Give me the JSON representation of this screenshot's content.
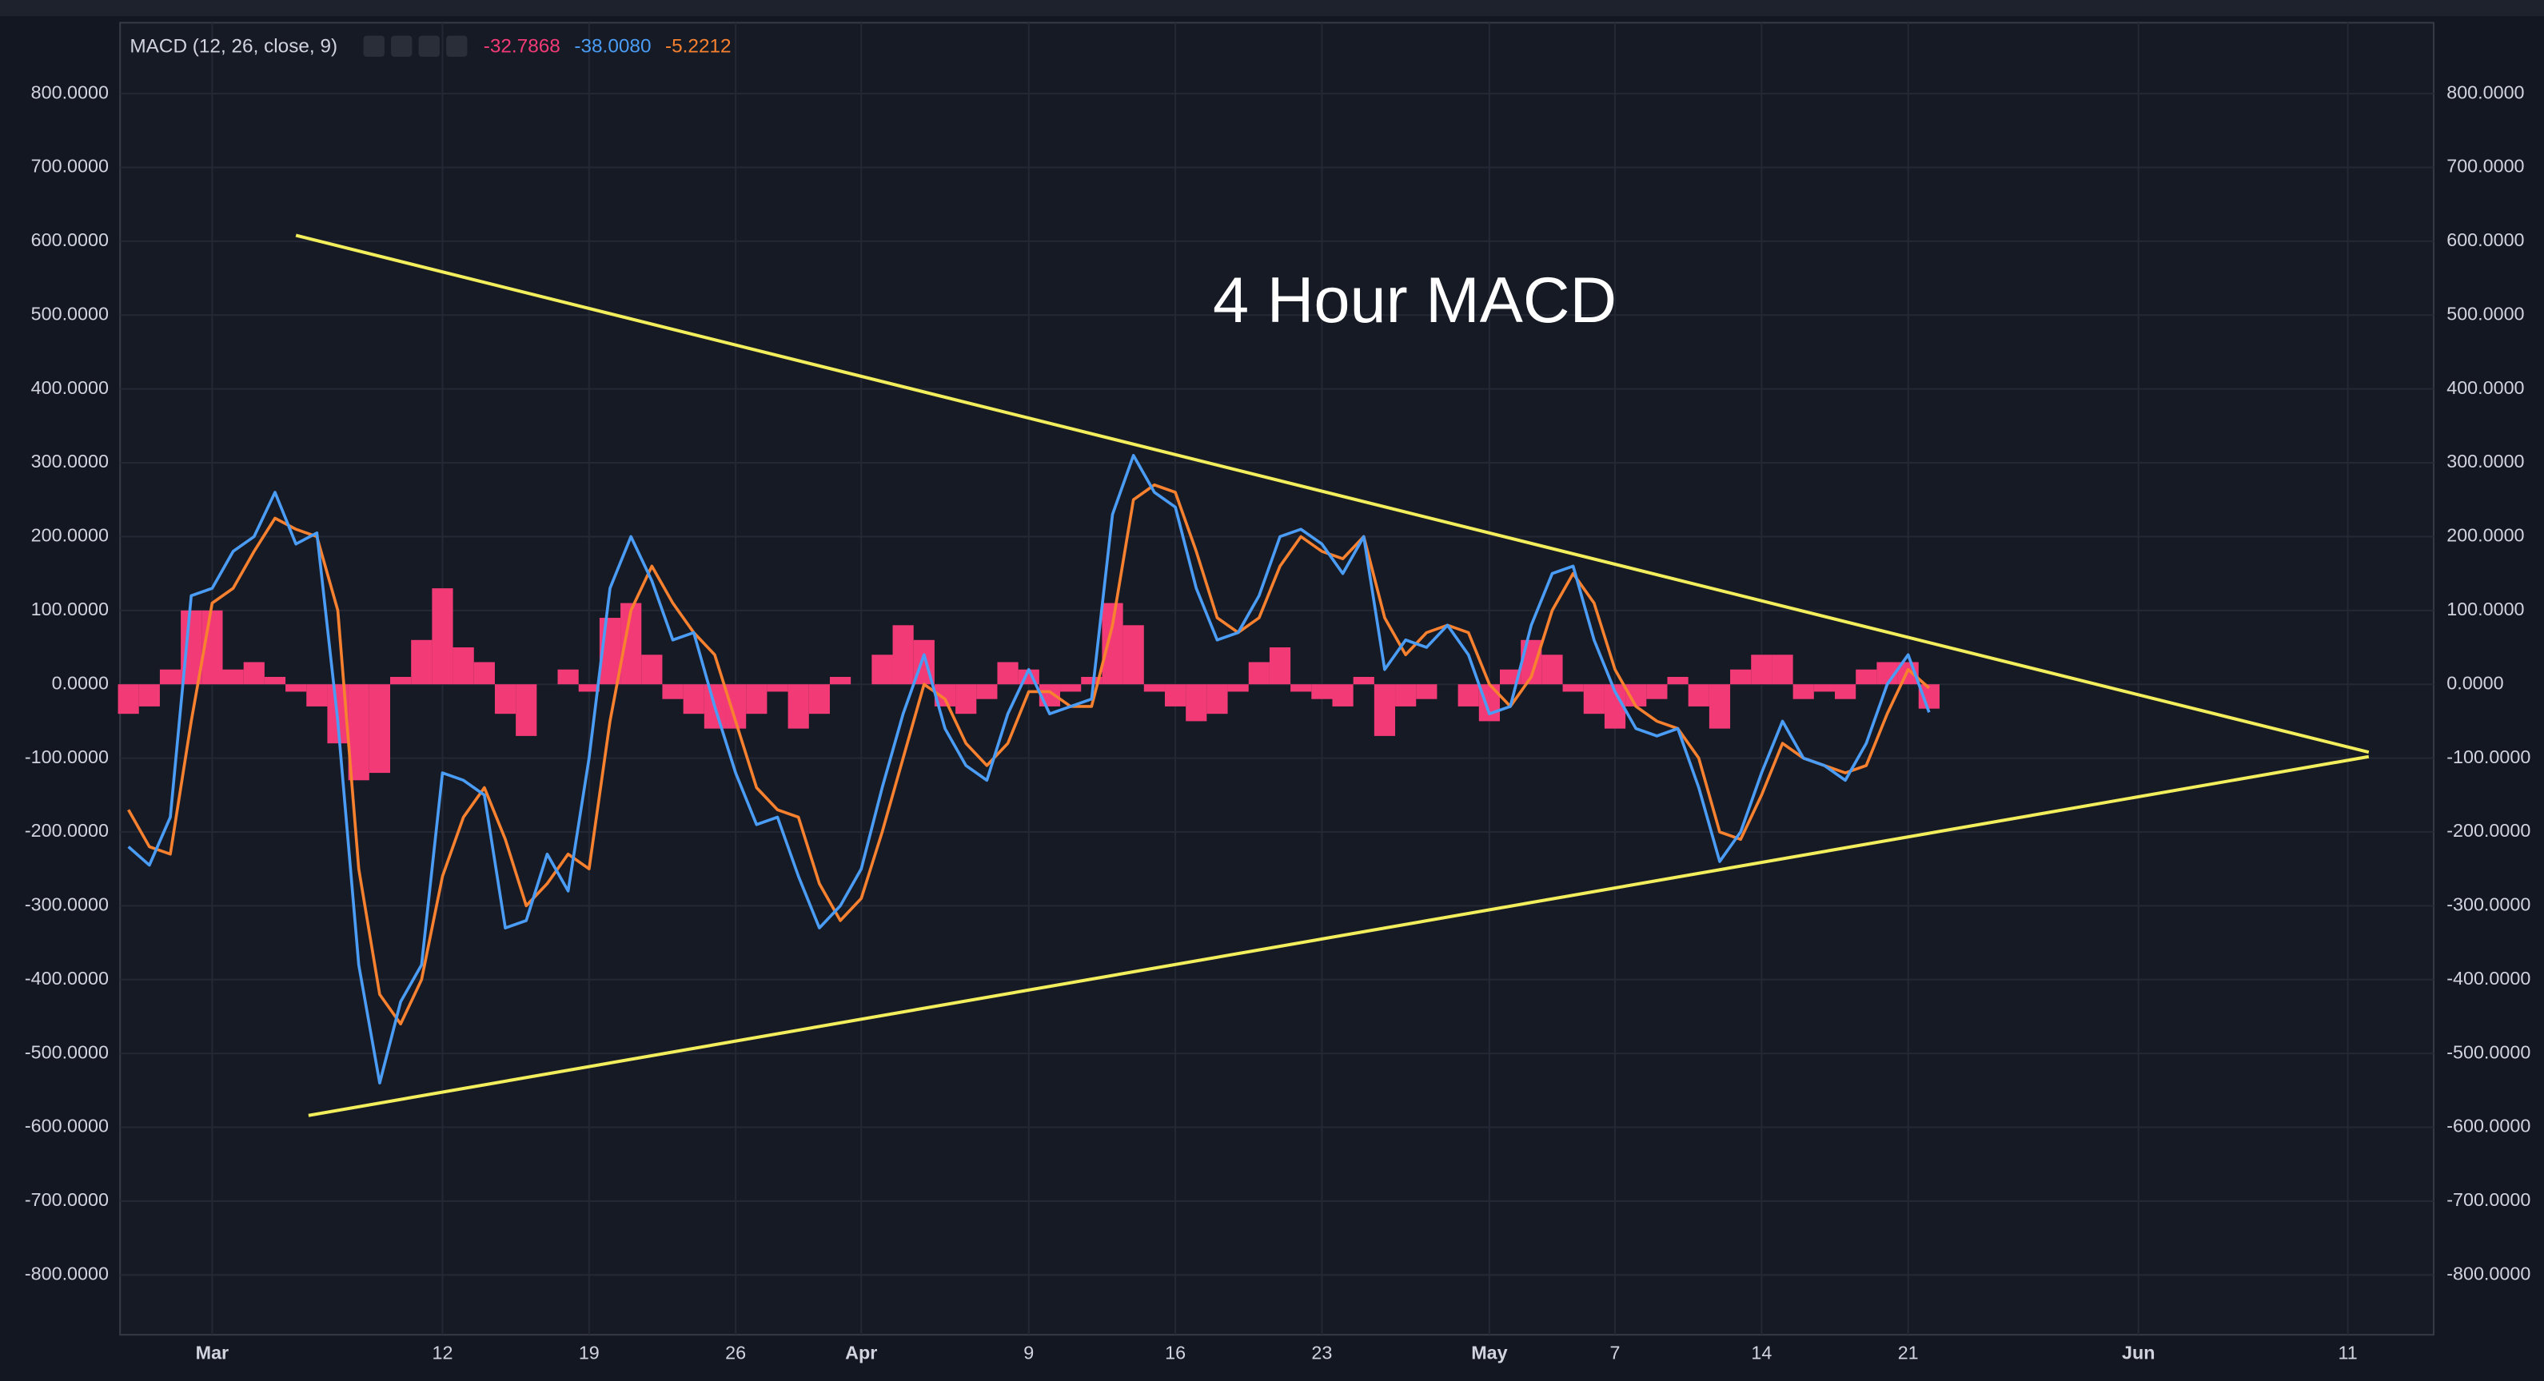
{
  "chart_data": {
    "type": "macd",
    "title": "4 Hour MACD",
    "indicator_label": "MACD (12, 26, close, 9)",
    "header_values": [
      "-32.7868",
      "-38.0080",
      "-5.2212"
    ],
    "ylim": [
      -881,
      896
    ],
    "yticks": [
      {
        "value": 800,
        "label": "800.0000"
      },
      {
        "value": 700,
        "label": "700.0000"
      },
      {
        "value": 600,
        "label": "600.0000"
      },
      {
        "value": 500,
        "label": "500.0000"
      },
      {
        "value": 400,
        "label": "400.0000"
      },
      {
        "value": 300,
        "label": "300.0000"
      },
      {
        "value": 200,
        "label": "200.0000"
      },
      {
        "value": 100,
        "label": "100.0000"
      },
      {
        "value": 0,
        "label": "0.0000"
      },
      {
        "value": -100,
        "label": "-100.0000"
      },
      {
        "value": -200,
        "label": "-200.0000"
      },
      {
        "value": -300,
        "label": "-300.0000"
      },
      {
        "value": -400,
        "label": "-400.0000"
      },
      {
        "value": -500,
        "label": "-500.0000"
      },
      {
        "value": -600,
        "label": "-600.0000"
      },
      {
        "value": -700,
        "label": "-700.0000"
      },
      {
        "value": -800,
        "label": "-800.0000"
      }
    ],
    "xlim": [
      -4.4,
      106.1
    ],
    "xticks": [
      {
        "value": 0,
        "label": "Mar"
      },
      {
        "value": 11,
        "label": "12"
      },
      {
        "value": 18,
        "label": "19"
      },
      {
        "value": 25,
        "label": "26"
      },
      {
        "value": 31,
        "label": "Apr"
      },
      {
        "value": 39,
        "label": "9"
      },
      {
        "value": 46,
        "label": "16"
      },
      {
        "value": 53,
        "label": "23"
      },
      {
        "value": 61,
        "label": "May"
      },
      {
        "value": 67,
        "label": "7"
      },
      {
        "value": 74,
        "label": "14"
      },
      {
        "value": 81,
        "label": "21"
      },
      {
        "value": 92,
        "label": "Jun"
      },
      {
        "value": 102,
        "label": "11"
      }
    ],
    "grid": true,
    "x": [
      -4,
      -3,
      -2,
      -1,
      0,
      1,
      2,
      3,
      4,
      5,
      6,
      7,
      8,
      9,
      10,
      11,
      12,
      13,
      14,
      15,
      16,
      17,
      18,
      19,
      20,
      21,
      22,
      23,
      24,
      25,
      26,
      27,
      28,
      29,
      30,
      31,
      32,
      33,
      34,
      35,
      36,
      37,
      38,
      39,
      40,
      41,
      42,
      43,
      44,
      45,
      46,
      47,
      48,
      49,
      50,
      51,
      52,
      53,
      54,
      55,
      56,
      57,
      58,
      59,
      60,
      61,
      62,
      63,
      64,
      65,
      66,
      67,
      68,
      69,
      70,
      71,
      72,
      73,
      74,
      75,
      76,
      77,
      78,
      79,
      80,
      81,
      82
    ],
    "histogram": {
      "color": "#f23b76",
      "values": [
        -40,
        -30,
        20,
        100,
        100,
        20,
        30,
        10,
        -10,
        -30,
        -80,
        -130,
        -120,
        10,
        60,
        130,
        50,
        30,
        -40,
        -70,
        0,
        20,
        -10,
        90,
        110,
        40,
        -20,
        -40,
        -60,
        -60,
        -40,
        -10,
        -60,
        -40,
        10,
        0,
        40,
        80,
        60,
        -30,
        -40,
        -20,
        30,
        20,
        -30,
        -10,
        10,
        110,
        80,
        -10,
        -30,
        -50,
        -40,
        -10,
        30,
        50,
        -10,
        -20,
        -30,
        10,
        -70,
        -30,
        -20,
        0,
        -30,
        -50,
        20,
        60,
        40,
        -10,
        -40,
        -60,
        -30,
        -20,
        10,
        -30,
        -60,
        20,
        40,
        40,
        -20,
        -10,
        -20,
        20,
        30,
        30,
        -33
      ]
    },
    "macd": {
      "color": "#4a9cf5",
      "values": [
        -220,
        -245,
        -180,
        120,
        130,
        180,
        200,
        260,
        190,
        205,
        -50,
        -380,
        -540,
        -430,
        -380,
        -120,
        -130,
        -150,
        -330,
        -320,
        -230,
        -280,
        -100,
        130,
        200,
        140,
        60,
        70,
        -30,
        -120,
        -190,
        -180,
        -260,
        -330,
        -300,
        -250,
        -140,
        -40,
        40,
        -60,
        -110,
        -130,
        -40,
        20,
        -40,
        -30,
        -20,
        230,
        310,
        260,
        240,
        130,
        60,
        70,
        120,
        200,
        210,
        190,
        150,
        200,
        20,
        60,
        50,
        80,
        40,
        -40,
        -30,
        80,
        150,
        160,
        60,
        -10,
        -60,
        -70,
        -60,
        -140,
        -240,
        -200,
        -120,
        -50,
        -100,
        -110,
        -130,
        -80,
        0,
        40,
        -38
      ]
    },
    "signal": {
      "color": "#f7812f",
      "values": [
        -170,
        -220,
        -230,
        -50,
        110,
        130,
        180,
        225,
        210,
        200,
        100,
        -250,
        -420,
        -460,
        -400,
        -260,
        -180,
        -140,
        -210,
        -300,
        -270,
        -230,
        -250,
        -50,
        100,
        160,
        110,
        70,
        40,
        -50,
        -140,
        -170,
        -180,
        -270,
        -320,
        -290,
        -200,
        -100,
        0,
        -20,
        -80,
        -110,
        -80,
        -10,
        -10,
        -30,
        -30,
        80,
        250,
        270,
        260,
        180,
        90,
        70,
        90,
        160,
        200,
        180,
        170,
        200,
        90,
        40,
        70,
        80,
        70,
        0,
        -30,
        10,
        100,
        150,
        110,
        20,
        -30,
        -50,
        -60,
        -100,
        -200,
        -210,
        -150,
        -80,
        -100,
        -110,
        -120,
        -110,
        -40,
        20,
        -5
      ]
    },
    "trendlines": [
      {
        "color": "#f2ee5c",
        "x": [
          4,
          103
        ],
        "values": [
          608,
          -92
        ]
      },
      {
        "color": "#f2ee5c",
        "x": [
          4.6,
          103
        ],
        "values": [
          -584,
          -98
        ]
      }
    ]
  }
}
